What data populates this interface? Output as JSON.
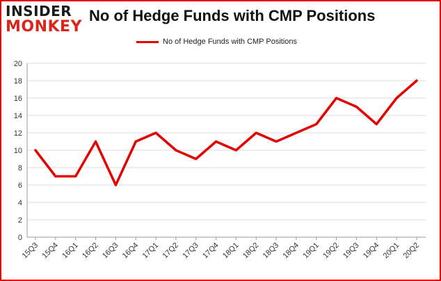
{
  "logo": {
    "line1": "INSIDER",
    "line2": "MONKEY"
  },
  "colors": {
    "series": "#e50000",
    "grid": "#d9d9d9",
    "frame": "#e50000",
    "axis": "#999999"
  },
  "chart_data": {
    "type": "line",
    "title": "No of Hedge Funds with CMP Positions",
    "xlabel": "",
    "ylabel": "",
    "ylim": [
      0,
      20
    ],
    "yticks": [
      0,
      2,
      4,
      6,
      8,
      10,
      12,
      14,
      16,
      18,
      20
    ],
    "grid": true,
    "legend_position": "top-center",
    "categories": [
      "15Q3",
      "15Q4",
      "16Q1",
      "16Q2",
      "16Q3",
      "16Q4",
      "17Q1",
      "17Q2",
      "17Q3",
      "17Q4",
      "18Q1",
      "18Q2",
      "18Q3",
      "18Q4",
      "19Q1",
      "19Q2",
      "19Q3",
      "19Q4",
      "20Q1",
      "20Q2"
    ],
    "series": [
      {
        "name": "No of Hedge Funds with CMP Positions",
        "values": [
          10,
          7,
          7,
          11,
          6,
          11,
          12,
          10,
          9,
          11,
          10,
          12,
          11,
          12,
          13,
          16,
          15,
          13,
          16,
          18
        ]
      }
    ]
  }
}
